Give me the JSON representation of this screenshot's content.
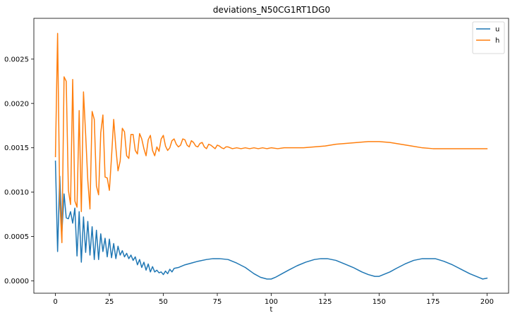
{
  "chart_data": {
    "type": "line",
    "title": "deviations_N50CG1RT1DG0",
    "xlabel": "t",
    "ylabel": "",
    "xlim": [
      -10,
      210
    ],
    "ylim": [
      -0.00014,
      0.00296
    ],
    "x_ticks": [
      0,
      25,
      50,
      75,
      100,
      125,
      150,
      175,
      200
    ],
    "x_tick_labels": [
      "0",
      "25",
      "50",
      "75",
      "100",
      "125",
      "150",
      "175",
      "200"
    ],
    "y_ticks": [
      0.0,
      0.0005,
      0.001,
      0.0015,
      0.002,
      0.0025
    ],
    "y_tick_labels": [
      "0.0000",
      "0.0005",
      "0.0010",
      "0.0015",
      "0.0020",
      "0.0025"
    ],
    "grid": false,
    "legend_position": "top-right",
    "series": [
      {
        "name": "u",
        "color": "#1f77b4",
        "x": [
          0,
          1,
          2,
          3,
          4,
          5,
          6,
          7,
          8,
          9,
          10,
          11,
          12,
          13,
          14,
          15,
          16,
          17,
          18,
          19,
          20,
          21,
          22,
          23,
          24,
          25,
          26,
          27,
          28,
          29,
          30,
          31,
          32,
          33,
          34,
          35,
          36,
          37,
          38,
          39,
          40,
          41,
          42,
          43,
          44,
          45,
          46,
          47,
          48,
          49,
          50,
          51,
          52,
          53,
          54,
          55,
          57,
          60,
          63,
          66,
          70,
          73,
          76,
          80,
          84,
          88,
          92,
          95,
          98,
          100,
          102,
          105,
          108,
          112,
          116,
          120,
          123,
          126,
          130,
          134,
          138,
          142,
          145,
          148,
          150,
          152,
          155,
          158,
          162,
          166,
          170,
          173,
          176,
          180,
          184,
          188,
          192,
          195,
          197,
          198,
          200
        ],
        "y": [
          0.00135,
          0.00033,
          0.00118,
          0.00055,
          0.00098,
          0.00071,
          0.0007,
          0.00078,
          0.00065,
          0.00082,
          0.00028,
          0.00078,
          0.00021,
          0.00072,
          0.00032,
          0.00067,
          0.00029,
          0.00061,
          0.00024,
          0.00057,
          0.00024,
          0.00053,
          0.00033,
          0.00048,
          0.00027,
          0.00047,
          0.00026,
          0.00042,
          0.00025,
          0.00039,
          0.00029,
          0.00034,
          0.00027,
          0.00031,
          0.00025,
          0.00029,
          0.00023,
          0.00027,
          0.00018,
          0.00024,
          0.00015,
          0.00021,
          0.00012,
          0.00019,
          0.0001,
          0.00016,
          0.0001,
          0.00012,
          9e-05,
          0.0001,
          7e-05,
          0.00011,
          8e-05,
          0.00013,
          0.0001,
          0.00014,
          0.00015,
          0.00018,
          0.0002,
          0.00022,
          0.00024,
          0.00025,
          0.00025,
          0.00024,
          0.0002,
          0.00015,
          8e-05,
          4e-05,
          2e-05,
          2e-05,
          4e-05,
          8e-05,
          0.00012,
          0.00017,
          0.00021,
          0.00024,
          0.00025,
          0.00025,
          0.00023,
          0.00019,
          0.00015,
          0.0001,
          7e-05,
          5e-05,
          5e-05,
          7e-05,
          0.0001,
          0.00014,
          0.00019,
          0.00023,
          0.00025,
          0.00025,
          0.00025,
          0.00022,
          0.00018,
          0.00013,
          8e-05,
          5e-05,
          3e-05,
          2e-05,
          3e-05
        ]
      },
      {
        "name": "h",
        "color": "#ff7f0e",
        "x": [
          0,
          1,
          2,
          3,
          4,
          5,
          6,
          7,
          8,
          9,
          10,
          11,
          12,
          13,
          14,
          15,
          16,
          17,
          18,
          19,
          20,
          21,
          22,
          23,
          24,
          25,
          26,
          27,
          28,
          29,
          30,
          31,
          32,
          33,
          34,
          35,
          36,
          37,
          38,
          39,
          40,
          41,
          42,
          43,
          44,
          45,
          46,
          47,
          48,
          49,
          50,
          51,
          52,
          53,
          54,
          55,
          56,
          57,
          58,
          59,
          60,
          61,
          62,
          63,
          64,
          65,
          66,
          67,
          68,
          69,
          70,
          71,
          72,
          73,
          74,
          75,
          76,
          77,
          78,
          79,
          80,
          82,
          84,
          86,
          88,
          90,
          92,
          94,
          96,
          98,
          100,
          103,
          106,
          110,
          115,
          120,
          125,
          130,
          135,
          140,
          145,
          150,
          155,
          160,
          165,
          170,
          175,
          180,
          185,
          190,
          195,
          200
        ],
        "y": [
          0.0014,
          0.00279,
          0.0009,
          0.00043,
          0.0023,
          0.00225,
          0.00102,
          0.00086,
          0.00227,
          0.0009,
          0.00083,
          0.00192,
          0.00078,
          0.00213,
          0.00165,
          0.00113,
          0.00081,
          0.00191,
          0.00182,
          0.00107,
          0.00097,
          0.00167,
          0.00187,
          0.00117,
          0.00116,
          0.00102,
          0.0014,
          0.00182,
          0.0015,
          0.00124,
          0.00135,
          0.00172,
          0.00168,
          0.00141,
          0.00138,
          0.00165,
          0.00165,
          0.00147,
          0.00143,
          0.00166,
          0.0016,
          0.00149,
          0.00141,
          0.00159,
          0.00164,
          0.00147,
          0.00141,
          0.00151,
          0.00146,
          0.0016,
          0.00164,
          0.00152,
          0.00147,
          0.0015,
          0.00158,
          0.0016,
          0.00154,
          0.00151,
          0.00153,
          0.0016,
          0.00159,
          0.00153,
          0.00151,
          0.00158,
          0.00156,
          0.00152,
          0.00151,
          0.00155,
          0.00156,
          0.00151,
          0.00149,
          0.00154,
          0.00153,
          0.00151,
          0.00149,
          0.00153,
          0.00152,
          0.0015,
          0.00149,
          0.00151,
          0.00151,
          0.00149,
          0.0015,
          0.00149,
          0.0015,
          0.00149,
          0.0015,
          0.00149,
          0.0015,
          0.00149,
          0.0015,
          0.00149,
          0.0015,
          0.0015,
          0.0015,
          0.00151,
          0.00152,
          0.00154,
          0.00155,
          0.00156,
          0.00157,
          0.00157,
          0.00156,
          0.00154,
          0.00152,
          0.0015,
          0.00149,
          0.00149,
          0.00149,
          0.00149,
          0.00149,
          0.00149
        ]
      }
    ]
  }
}
